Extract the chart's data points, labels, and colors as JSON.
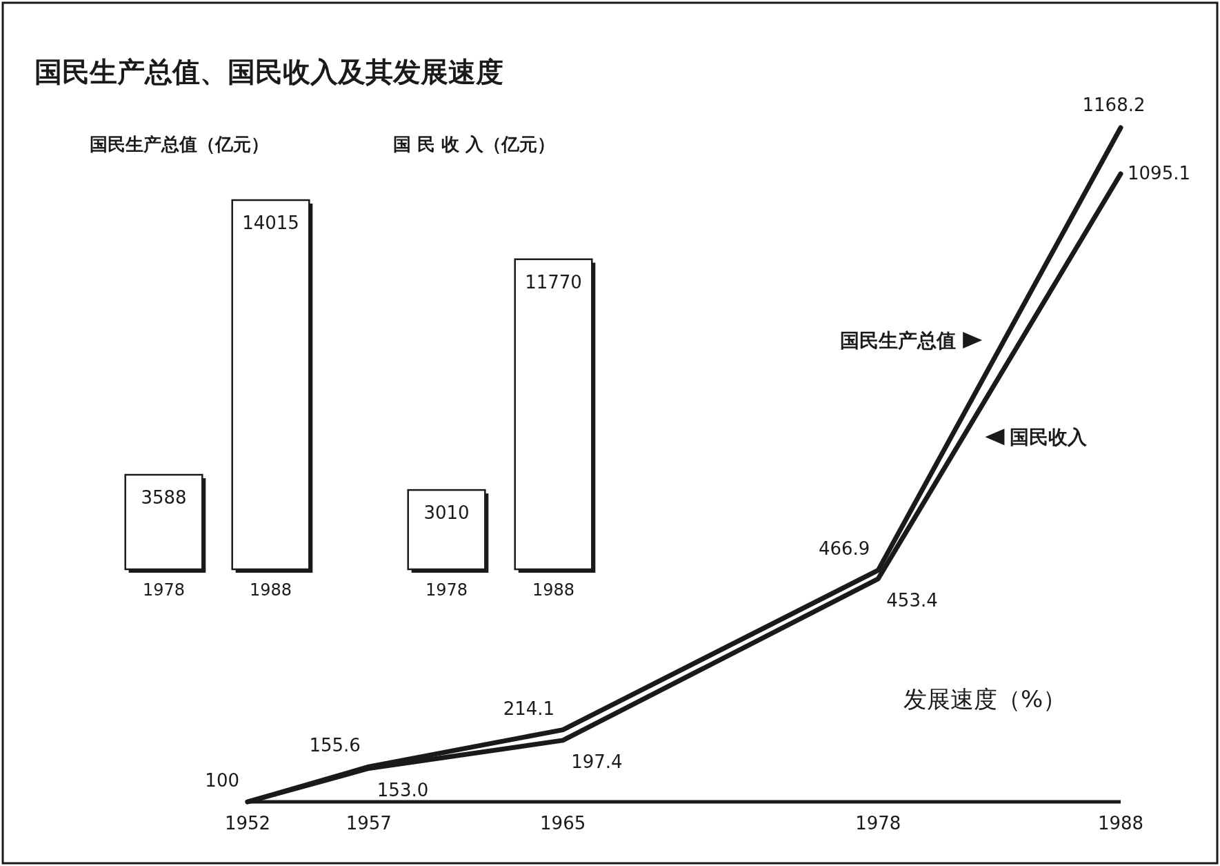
{
  "chart_data": [
    {
      "type": "bar",
      "title": "国民生产总值、国民收入及其发展速度",
      "subtitle": "国民生产总值（亿元）",
      "categories": [
        "1978",
        "1988"
      ],
      "values": [
        3588,
        14015
      ],
      "data_labels": true,
      "color": "#ffffff",
      "tick_labels": "x"
    },
    {
      "type": "bar",
      "title": "国 民 收 入（亿元）",
      "categories": [
        "1978",
        "1988"
      ],
      "values": [
        3010,
        11770
      ],
      "data_labels": true,
      "color": "#ffffff",
      "tick_labels": "x"
    },
    {
      "type": "line",
      "x": [
        1952,
        1957,
        1965,
        1978,
        1988
      ],
      "xlim": [
        1952,
        1988
      ],
      "xticks": [
        1952,
        1957,
        1965,
        1978,
        1988
      ],
      "tick_labels": "x",
      "marker": "none",
      "line_style": "solid",
      "series": [
        {
          "name": "国民生产总值",
          "color": "#1a1a1a",
          "values": [
            100,
            155.6,
            214.1,
            466.9,
            1168.2
          ],
          "value_labels": [
            "100",
            "155.6",
            "214.1",
            "466.9",
            "1168.2"
          ]
        },
        {
          "name": "国民收入",
          "color": "#1a1a1a",
          "values": [
            100,
            153.0,
            197.4,
            453.4,
            1095.1
          ],
          "value_labels": [
            null,
            "153.0",
            "197.4",
            "453.4",
            "1095.1"
          ]
        }
      ],
      "annotations": [
        "发展速度（%）"
      ]
    }
  ]
}
